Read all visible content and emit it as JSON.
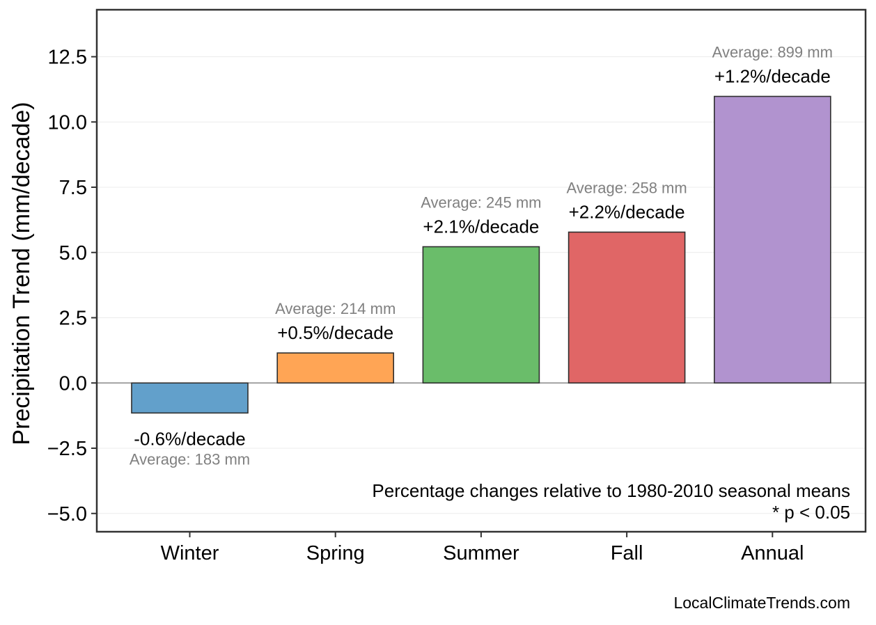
{
  "chart_data": {
    "type": "bar",
    "categories": [
      "Winter",
      "Spring",
      "Summer",
      "Fall",
      "Annual"
    ],
    "values": [
      -1.15,
      1.15,
      5.22,
      5.78,
      10.98
    ],
    "pct_labels": [
      "-0.6%/decade",
      "+0.5%/decade",
      "+2.1%/decade",
      "+2.2%/decade",
      "+1.2%/decade"
    ],
    "avg_labels": [
      "Average: 183 mm",
      "Average: 214 mm",
      "Average: 245 mm",
      "Average: 258 mm",
      "Average: 899 mm"
    ],
    "colors": [
      "#62a0cb",
      "#ffa555",
      "#6abd6a",
      "#e06666",
      "#b193cf"
    ],
    "ylabel": "Precipitation Trend (mm/decade)",
    "xlabel": "",
    "ylim": [
      -5.7,
      14.3
    ],
    "yticks": [
      -5.0,
      -2.5,
      0.0,
      2.5,
      5.0,
      7.5,
      10.0,
      12.5
    ],
    "ytick_labels": [
      "−5.0",
      "−2.5",
      "0.0",
      "2.5",
      "5.0",
      "7.5",
      "10.0",
      "12.5"
    ],
    "grid": true,
    "zero_line": true
  },
  "notes": {
    "line1": "Percentage changes relative to 1980-2010 seasonal means",
    "line2": "* p < 0.05"
  },
  "source": "LocalClimateTrends.com"
}
